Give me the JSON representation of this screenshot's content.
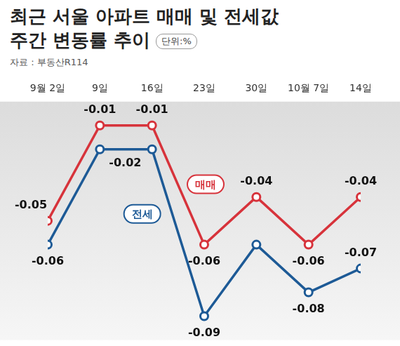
{
  "chart_data": {
    "type": "line",
    "title": [
      "최근 서울 아파트 매매 및 전세값",
      "주간 변동률 추이"
    ],
    "unit": "단위:%",
    "source": "자료 : 부동산R114",
    "categories": [
      "9월 2일",
      "9일",
      "16일",
      "23일",
      "30일",
      "10월 7일",
      "14일"
    ],
    "series": [
      {
        "name": "매매",
        "color": "#d7333b",
        "marker": "circle",
        "line_style": "solid",
        "values": [
          -0.05,
          -0.01,
          -0.01,
          -0.06,
          -0.04,
          -0.06,
          -0.04
        ]
      },
      {
        "name": "전세",
        "color": "#1d5a96",
        "marker": "circle",
        "line_style": "solid",
        "values": [
          -0.06,
          -0.02,
          -0.02,
          -0.09,
          -0.06,
          -0.08,
          -0.07
        ],
        "value_labels": [
          "-0.06",
          "-0.02",
          null,
          "-0.09",
          null,
          "-0.08",
          "-0.07"
        ]
      }
    ],
    "ylim": [
      -0.1,
      0
    ],
    "grid": false,
    "tick_labels": "x",
    "data_labels": true
  }
}
